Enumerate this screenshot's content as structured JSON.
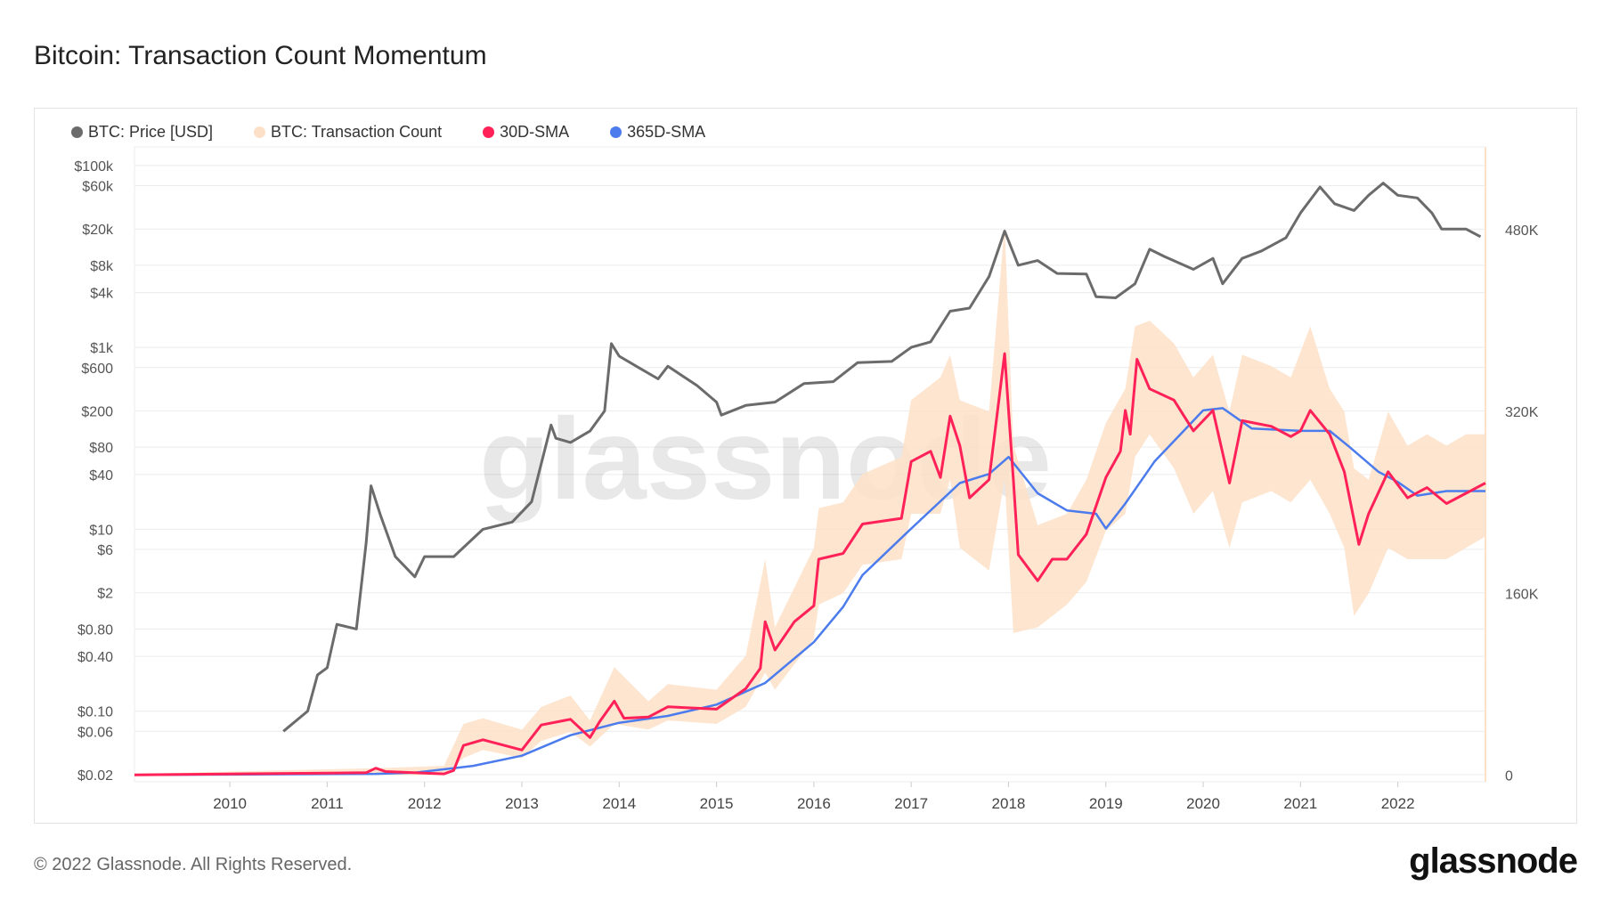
{
  "title": "Bitcoin: Transaction Count Momentum",
  "footer": "© 2022 Glassnode. All Rights Reserved.",
  "logo": "glassnode",
  "watermark": "glassnode",
  "colors": {
    "price": "#6b6b6b",
    "tx_count": "#fde0c8",
    "sma30": "#ff2157",
    "sma365": "#4b7bec"
  },
  "chart_data": {
    "type": "line",
    "title": "Bitcoin: Transaction Count Momentum",
    "legend_position": "top-left",
    "grid": true,
    "x_range": [
      2009.02,
      2022.9
    ],
    "y_left_scale": "log",
    "y_left_range": [
      0.0167,
      160000
    ],
    "y_right_range": [
      -6000,
      553000
    ],
    "x_ticks": [
      "2010",
      "2011",
      "2012",
      "2013",
      "2014",
      "2015",
      "2016",
      "2017",
      "2018",
      "2019",
      "2020",
      "2021",
      "2022"
    ],
    "y_left_ticks": [
      {
        "value": 100000,
        "label": "$100k"
      },
      {
        "value": 60000,
        "label": "$60k"
      },
      {
        "value": 20000,
        "label": "$20k"
      },
      {
        "value": 8000,
        "label": "$8k"
      },
      {
        "value": 4000,
        "label": "$4k"
      },
      {
        "value": 1000,
        "label": "$1k"
      },
      {
        "value": 600,
        "label": "$600"
      },
      {
        "value": 200,
        "label": "$200"
      },
      {
        "value": 80,
        "label": "$80"
      },
      {
        "value": 40,
        "label": "$40"
      },
      {
        "value": 10,
        "label": "$10"
      },
      {
        "value": 6,
        "label": "$6"
      },
      {
        "value": 2,
        "label": "$2"
      },
      {
        "value": 0.8,
        "label": "$0.80"
      },
      {
        "value": 0.4,
        "label": "$0.40"
      },
      {
        "value": 0.1,
        "label": "$0.10"
      },
      {
        "value": 0.06,
        "label": "$0.06"
      },
      {
        "value": 0.02,
        "label": "$0.02"
      }
    ],
    "y_right_ticks": [
      {
        "value": 480000,
        "label": "480K"
      },
      {
        "value": 320000,
        "label": "320K"
      },
      {
        "value": 160000,
        "label": "160K"
      },
      {
        "value": 0,
        "label": "0"
      }
    ],
    "series": [
      {
        "name": "BTC: Price [USD]",
        "axis": "left",
        "points": [
          [
            2010.55,
            0.06
          ],
          [
            2010.8,
            0.1
          ],
          [
            2010.9,
            0.25
          ],
          [
            2011.0,
            0.3
          ],
          [
            2011.1,
            0.9
          ],
          [
            2011.3,
            0.8
          ],
          [
            2011.4,
            7
          ],
          [
            2011.45,
            30
          ],
          [
            2011.55,
            14
          ],
          [
            2011.7,
            5
          ],
          [
            2011.9,
            3
          ],
          [
            2012.0,
            5
          ],
          [
            2012.3,
            5
          ],
          [
            2012.6,
            10
          ],
          [
            2012.9,
            12
          ],
          [
            2013.1,
            20
          ],
          [
            2013.3,
            140
          ],
          [
            2013.35,
            100
          ],
          [
            2013.5,
            90
          ],
          [
            2013.7,
            120
          ],
          [
            2013.85,
            200
          ],
          [
            2013.92,
            1100
          ],
          [
            2014.0,
            800
          ],
          [
            2014.2,
            600
          ],
          [
            2014.4,
            450
          ],
          [
            2014.5,
            620
          ],
          [
            2014.8,
            380
          ],
          [
            2015.0,
            250
          ],
          [
            2015.05,
            180
          ],
          [
            2015.3,
            230
          ],
          [
            2015.6,
            250
          ],
          [
            2015.9,
            400
          ],
          [
            2016.2,
            420
          ],
          [
            2016.45,
            680
          ],
          [
            2016.8,
            700
          ],
          [
            2017.0,
            1000
          ],
          [
            2017.2,
            1150
          ],
          [
            2017.4,
            2500
          ],
          [
            2017.6,
            2700
          ],
          [
            2017.8,
            6000
          ],
          [
            2017.96,
            19000
          ],
          [
            2018.1,
            8000
          ],
          [
            2018.3,
            9000
          ],
          [
            2018.5,
            6500
          ],
          [
            2018.8,
            6400
          ],
          [
            2018.9,
            3600
          ],
          [
            2019.1,
            3500
          ],
          [
            2019.3,
            5000
          ],
          [
            2019.45,
            12000
          ],
          [
            2019.6,
            10000
          ],
          [
            2019.9,
            7200
          ],
          [
            2020.1,
            9500
          ],
          [
            2020.2,
            5000
          ],
          [
            2020.4,
            9500
          ],
          [
            2020.6,
            11500
          ],
          [
            2020.85,
            16000
          ],
          [
            2021.0,
            30000
          ],
          [
            2021.2,
            58000
          ],
          [
            2021.35,
            38000
          ],
          [
            2021.55,
            32000
          ],
          [
            2021.7,
            47000
          ],
          [
            2021.85,
            64000
          ],
          [
            2022.0,
            47000
          ],
          [
            2022.2,
            44000
          ],
          [
            2022.35,
            30000
          ],
          [
            2022.45,
            20000
          ],
          [
            2022.7,
            20000
          ],
          [
            2022.85,
            16500
          ]
        ]
      },
      {
        "name": "BTC: Transaction Count",
        "axis": "right",
        "low_high": [
          [
            2009.02,
            0,
            1000
          ],
          [
            2011.5,
            0,
            6000
          ],
          [
            2012.2,
            0,
            8000
          ],
          [
            2012.4,
            15000,
            45000
          ],
          [
            2012.6,
            22000,
            50000
          ],
          [
            2013.0,
            15000,
            40000
          ],
          [
            2013.2,
            30000,
            60000
          ],
          [
            2013.5,
            38000,
            70000
          ],
          [
            2013.7,
            25000,
            48000
          ],
          [
            2013.95,
            45000,
            95000
          ],
          [
            2014.3,
            40000,
            65000
          ],
          [
            2014.5,
            48000,
            80000
          ],
          [
            2015.0,
            45000,
            75000
          ],
          [
            2015.3,
            60000,
            105000
          ],
          [
            2015.5,
            90000,
            190000
          ],
          [
            2015.6,
            75000,
            130000
          ],
          [
            2016.0,
            120000,
            200000
          ],
          [
            2016.05,
            150000,
            235000
          ],
          [
            2016.3,
            160000,
            240000
          ],
          [
            2016.5,
            185000,
            265000
          ],
          [
            2016.9,
            190000,
            280000
          ],
          [
            2017.0,
            230000,
            330000
          ],
          [
            2017.3,
            230000,
            350000
          ],
          [
            2017.4,
            260000,
            370000
          ],
          [
            2017.5,
            200000,
            330000
          ],
          [
            2017.8,
            180000,
            320000
          ],
          [
            2017.96,
            260000,
            484000
          ],
          [
            2018.05,
            125000,
            290000
          ],
          [
            2018.3,
            130000,
            220000
          ],
          [
            2018.6,
            150000,
            230000
          ],
          [
            2018.8,
            170000,
            260000
          ],
          [
            2019.0,
            215000,
            310000
          ],
          [
            2019.2,
            230000,
            340000
          ],
          [
            2019.3,
            280000,
            395000
          ],
          [
            2019.45,
            300000,
            400000
          ],
          [
            2019.7,
            270000,
            380000
          ],
          [
            2019.9,
            230000,
            350000
          ],
          [
            2020.1,
            250000,
            370000
          ],
          [
            2020.27,
            200000,
            320000
          ],
          [
            2020.4,
            240000,
            370000
          ],
          [
            2020.7,
            250000,
            360000
          ],
          [
            2020.9,
            240000,
            350000
          ],
          [
            2021.1,
            260000,
            395000
          ],
          [
            2021.3,
            230000,
            340000
          ],
          [
            2021.45,
            200000,
            320000
          ],
          [
            2021.55,
            140000,
            270000
          ],
          [
            2021.7,
            160000,
            260000
          ],
          [
            2021.9,
            200000,
            320000
          ],
          [
            2022.1,
            190000,
            290000
          ],
          [
            2022.3,
            190000,
            300000
          ],
          [
            2022.5,
            190000,
            290000
          ],
          [
            2022.7,
            200000,
            300000
          ],
          [
            2022.9,
            210000,
            300000
          ]
        ]
      },
      {
        "name": "30D-SMA",
        "axis": "right",
        "points": [
          [
            2009.02,
            0
          ],
          [
            2011.4,
            2000
          ],
          [
            2011.5,
            6000
          ],
          [
            2011.6,
            3000
          ],
          [
            2012.2,
            1000
          ],
          [
            2012.3,
            4000
          ],
          [
            2012.4,
            26000
          ],
          [
            2012.6,
            31000
          ],
          [
            2013.0,
            22000
          ],
          [
            2013.2,
            44000
          ],
          [
            2013.5,
            49000
          ],
          [
            2013.7,
            33000
          ],
          [
            2013.8,
            47000
          ],
          [
            2013.95,
            65000
          ],
          [
            2014.05,
            50000
          ],
          [
            2014.3,
            51000
          ],
          [
            2014.5,
            60000
          ],
          [
            2015.0,
            58000
          ],
          [
            2015.3,
            76000
          ],
          [
            2015.45,
            94000
          ],
          [
            2015.5,
            135000
          ],
          [
            2015.6,
            110000
          ],
          [
            2015.8,
            135000
          ],
          [
            2016.0,
            149000
          ],
          [
            2016.05,
            190000
          ],
          [
            2016.3,
            195000
          ],
          [
            2016.5,
            221000
          ],
          [
            2016.9,
            226000
          ],
          [
            2017.0,
            276000
          ],
          [
            2017.2,
            285000
          ],
          [
            2017.3,
            262000
          ],
          [
            2017.4,
            316000
          ],
          [
            2017.5,
            290000
          ],
          [
            2017.6,
            244000
          ],
          [
            2017.8,
            260000
          ],
          [
            2017.96,
            371000
          ],
          [
            2018.05,
            260000
          ],
          [
            2018.1,
            194000
          ],
          [
            2018.3,
            171000
          ],
          [
            2018.45,
            190000
          ],
          [
            2018.6,
            190000
          ],
          [
            2018.8,
            212000
          ],
          [
            2019.0,
            262000
          ],
          [
            2019.15,
            285000
          ],
          [
            2019.2,
            321000
          ],
          [
            2019.25,
            300000
          ],
          [
            2019.32,
            366000
          ],
          [
            2019.45,
            340000
          ],
          [
            2019.7,
            330000
          ],
          [
            2019.9,
            303000
          ],
          [
            2020.1,
            321000
          ],
          [
            2020.27,
            257000
          ],
          [
            2020.4,
            312000
          ],
          [
            2020.7,
            307000
          ],
          [
            2020.9,
            298000
          ],
          [
            2021.0,
            303000
          ],
          [
            2021.1,
            321000
          ],
          [
            2021.3,
            300000
          ],
          [
            2021.45,
            267000
          ],
          [
            2021.6,
            203000
          ],
          [
            2021.7,
            230000
          ],
          [
            2021.9,
            267000
          ],
          [
            2022.1,
            244000
          ],
          [
            2022.3,
            253000
          ],
          [
            2022.5,
            239000
          ],
          [
            2022.7,
            248000
          ],
          [
            2022.9,
            257000
          ]
        ]
      },
      {
        "name": "365D-SMA",
        "axis": "right",
        "points": [
          [
            2009.02,
            0
          ],
          [
            2011.5,
            1000
          ],
          [
            2011.9,
            2000
          ],
          [
            2012.5,
            8000
          ],
          [
            2013.0,
            17000
          ],
          [
            2013.5,
            35000
          ],
          [
            2014.0,
            46000
          ],
          [
            2014.5,
            52000
          ],
          [
            2015.0,
            62000
          ],
          [
            2015.5,
            81000
          ],
          [
            2016.0,
            117000
          ],
          [
            2016.3,
            148000
          ],
          [
            2016.5,
            176000
          ],
          [
            2017.0,
            217000
          ],
          [
            2017.5,
            257000
          ],
          [
            2017.8,
            265000
          ],
          [
            2018.0,
            280000
          ],
          [
            2018.3,
            248000
          ],
          [
            2018.6,
            233000
          ],
          [
            2018.9,
            230000
          ],
          [
            2019.0,
            217000
          ],
          [
            2019.2,
            239000
          ],
          [
            2019.5,
            276000
          ],
          [
            2019.8,
            303000
          ],
          [
            2020.0,
            321000
          ],
          [
            2020.2,
            323000
          ],
          [
            2020.5,
            305000
          ],
          [
            2021.0,
            303000
          ],
          [
            2021.3,
            303000
          ],
          [
            2021.5,
            289000
          ],
          [
            2021.8,
            267000
          ],
          [
            2022.0,
            258000
          ],
          [
            2022.2,
            246000
          ],
          [
            2022.5,
            250000
          ],
          [
            2022.9,
            250000
          ]
        ]
      }
    ]
  }
}
